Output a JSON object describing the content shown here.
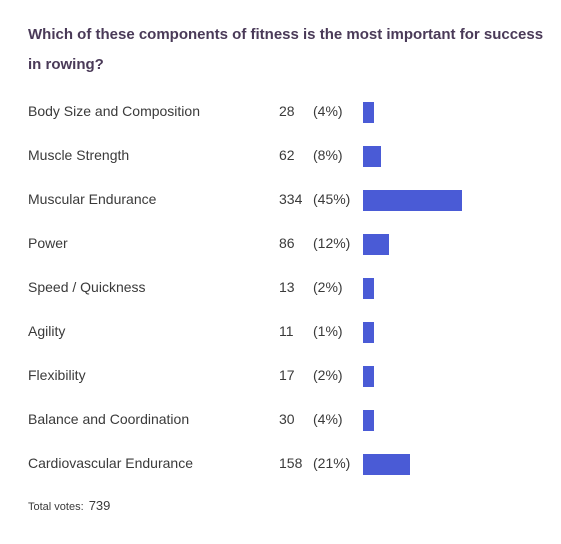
{
  "poll": {
    "question": "Which of these components of fitness is the most important for success in rowing?",
    "total_label": "Total votes:",
    "total_value": "739",
    "bar_color": "#4a5bd6"
  },
  "chart_data": {
    "type": "bar",
    "orientation": "horizontal",
    "title": "Which of these components of fitness is the most important for success in rowing?",
    "categories": [
      "Body Size and Composition",
      "Muscle Strength",
      "Muscular Endurance",
      "Power",
      "Speed / Quickness",
      "Agility",
      "Flexibility",
      "Balance and Coordination",
      "Cardiovascular Endurance"
    ],
    "values": [
      28,
      62,
      334,
      86,
      13,
      11,
      17,
      30,
      158
    ],
    "percent_labels": [
      "(4%)",
      "(8%)",
      "(45%)",
      "(12%)",
      "(2%)",
      "(1%)",
      "(2%)",
      "(4%)",
      "(21%)"
    ],
    "total_votes": 739
  }
}
